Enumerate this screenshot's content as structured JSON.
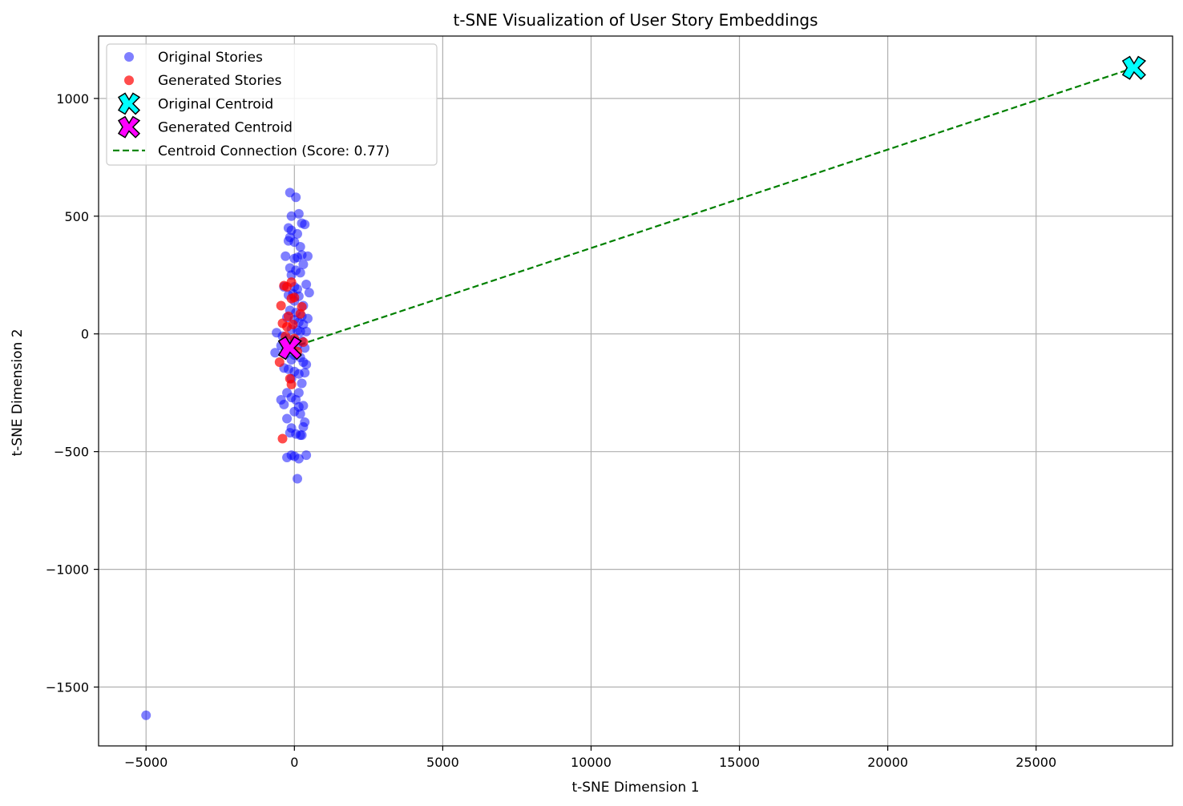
{
  "chart_data": {
    "type": "scatter",
    "title": "t-SNE Visualization of User Story Embeddings",
    "xlabel": "t-SNE Dimension 1",
    "ylabel": "t-SNE Dimension 2",
    "xlim": [
      -6600,
      29600
    ],
    "ylim": [
      -1750,
      1265
    ],
    "x_ticks": [
      -5000,
      0,
      5000,
      10000,
      15000,
      20000,
      25000
    ],
    "x_tick_labels": [
      "−5000",
      "0",
      "5000",
      "10000",
      "15000",
      "20000",
      "25000"
    ],
    "y_ticks": [
      -1500,
      -1000,
      -500,
      0,
      500,
      1000
    ],
    "y_tick_labels": [
      "−1500",
      "−1000",
      "−500",
      "0",
      "500",
      "1000"
    ],
    "grid": true,
    "legend_position": "top-left",
    "series": [
      {
        "name": "Original Stories",
        "kind": "scatter",
        "color": "#0000ff",
        "opacity": 0.5,
        "points": [
          [
            -150,
            600
          ],
          [
            50,
            580
          ],
          [
            -100,
            500
          ],
          [
            150,
            510
          ],
          [
            250,
            470
          ],
          [
            350,
            465
          ],
          [
            -200,
            450
          ],
          [
            -100,
            440
          ],
          [
            100,
            425
          ],
          [
            -150,
            410
          ],
          [
            -200,
            395
          ],
          [
            0,
            390
          ],
          [
            200,
            370
          ],
          [
            -300,
            330
          ],
          [
            0,
            320
          ],
          [
            100,
            325
          ],
          [
            250,
            335
          ],
          [
            450,
            330
          ],
          [
            -150,
            280
          ],
          [
            50,
            270
          ],
          [
            200,
            260
          ],
          [
            300,
            295
          ],
          [
            -100,
            250
          ],
          [
            -350,
            200
          ],
          [
            0,
            200
          ],
          [
            100,
            190
          ],
          [
            400,
            210
          ],
          [
            500,
            175
          ],
          [
            -200,
            165
          ],
          [
            -50,
            170
          ],
          [
            150,
            160
          ],
          [
            0,
            140
          ],
          [
            300,
            120
          ],
          [
            -150,
            100
          ],
          [
            50,
            90
          ],
          [
            250,
            75
          ],
          [
            450,
            65
          ],
          [
            -250,
            70
          ],
          [
            0,
            60
          ],
          [
            150,
            50
          ],
          [
            300,
            40
          ],
          [
            -100,
            20
          ],
          [
            100,
            15
          ],
          [
            -600,
            5
          ],
          [
            200,
            10
          ],
          [
            400,
            10
          ],
          [
            -400,
            -10
          ],
          [
            -200,
            -20
          ],
          [
            0,
            -25
          ],
          [
            250,
            -30
          ],
          [
            -450,
            -50
          ],
          [
            100,
            -50
          ],
          [
            350,
            -60
          ],
          [
            -650,
            -80
          ],
          [
            -300,
            -85
          ],
          [
            0,
            -90
          ],
          [
            200,
            -100
          ],
          [
            -100,
            -110
          ],
          [
            300,
            -120
          ],
          [
            400,
            -130
          ],
          [
            -350,
            -145
          ],
          [
            -200,
            -150
          ],
          [
            0,
            -160
          ],
          [
            150,
            -170
          ],
          [
            350,
            -165
          ],
          [
            -100,
            -190
          ],
          [
            250,
            -210
          ],
          [
            -250,
            -250
          ],
          [
            150,
            -250
          ],
          [
            -450,
            -280
          ],
          [
            -100,
            -270
          ],
          [
            50,
            -280
          ],
          [
            -350,
            -300
          ],
          [
            150,
            -310
          ],
          [
            300,
            -305
          ],
          [
            0,
            -330
          ],
          [
            200,
            -340
          ],
          [
            -250,
            -360
          ],
          [
            350,
            -375
          ],
          [
            -100,
            -400
          ],
          [
            300,
            -395
          ],
          [
            -150,
            -420
          ],
          [
            50,
            -425
          ],
          [
            200,
            -430
          ],
          [
            250,
            -430
          ],
          [
            -100,
            -515
          ],
          [
            0,
            -520
          ],
          [
            150,
            -530
          ],
          [
            -250,
            -525
          ],
          [
            400,
            -515
          ],
          [
            100,
            -615
          ],
          [
            -5000,
            -1620
          ]
        ]
      },
      {
        "name": "Generated Stories",
        "kind": "scatter",
        "color": "#ff0000",
        "opacity": 0.7,
        "points": [
          [
            -100,
            220
          ],
          [
            -250,
            200
          ],
          [
            -350,
            205
          ],
          [
            -100,
            150
          ],
          [
            0,
            155
          ],
          [
            -450,
            120
          ],
          [
            250,
            115
          ],
          [
            -200,
            75
          ],
          [
            200,
            85
          ],
          [
            -400,
            45
          ],
          [
            -250,
            30
          ],
          [
            -50,
            40
          ],
          [
            -300,
            -10
          ],
          [
            0,
            -20
          ],
          [
            300,
            -35
          ],
          [
            -100,
            -60
          ],
          [
            100,
            -75
          ],
          [
            -500,
            -120
          ],
          [
            -150,
            -190
          ],
          [
            -100,
            -215
          ],
          [
            -400,
            -445
          ]
        ]
      },
      {
        "name": "Original Centroid",
        "kind": "marker-x",
        "color": "#00ffff",
        "points": [
          [
            28300,
            1130
          ]
        ]
      },
      {
        "name": "Generated Centroid",
        "kind": "marker-x",
        "color": "#ff00ff",
        "points": [
          [
            -150,
            -60
          ]
        ]
      },
      {
        "name": "Centroid Connection (Score: 0.77)",
        "kind": "dashed-line",
        "color": "#008000",
        "points": [
          [
            -150,
            -60
          ],
          [
            28300,
            1130
          ]
        ]
      }
    ]
  }
}
